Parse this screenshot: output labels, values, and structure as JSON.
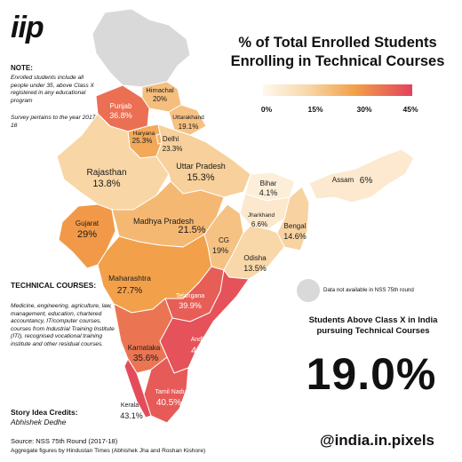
{
  "brand": {
    "logo": "iip",
    "handle": "@india.in.pixels"
  },
  "title": "% of Total Enrolled Students Enrolling in Technical Courses",
  "legend": {
    "ticks": [
      "0%",
      "15%",
      "30%",
      "45%"
    ],
    "min": 0,
    "max": 45
  },
  "note": {
    "heading": "NOTE:",
    "line1": "Enrolled students include all people under 35, above Class X registered in any educational program",
    "line2": "Survey pertains to the year 2017-18"
  },
  "technical_courses": {
    "heading": "TECHNICAL COURSES:",
    "body": "Medicine, engineering, agriculture, law, management, education, chartered accountancy, IT/computer courses, courses from Industrial Training Institute (ITI), recognised vocational training institute and other residual courses."
  },
  "credits": {
    "heading": "Story Idea Credits:",
    "name": "Abhishek Dedhe"
  },
  "source": "Source: NSS 75th Round (2017-18)",
  "aggregate_note": "Aggregate figures by Hindustan Times (Abhishek Jha and Roshan Kishore)",
  "no_data": {
    "label": "Data not available in NSS 75th round",
    "color": "#d9d9d9"
  },
  "headline_stat": {
    "label": "Students Above Class X in India pursuing Technical Courses",
    "value": "19.0%"
  },
  "colors": {
    "low": "#fff8ee",
    "mid1": "#f8d7a8",
    "mid2": "#f29f48",
    "high": "#e2425e",
    "border": "#ffffff"
  },
  "regions": [
    {
      "name": "Himachal",
      "value": 20,
      "label": "20%"
    },
    {
      "name": "Punjab",
      "value": 36.8,
      "label": "36.8%"
    },
    {
      "name": "Uttarakhand",
      "value": 19.1,
      "label": "19.1%"
    },
    {
      "name": "Haryana",
      "value": 25.3,
      "label": "25.3%"
    },
    {
      "name": "Delhi",
      "value": 23.3,
      "label": "23.3%"
    },
    {
      "name": "Rajasthan",
      "value": 13.8,
      "label": "13.8%"
    },
    {
      "name": "Uttar Pradesh",
      "value": 15.3,
      "label": "15.3%"
    },
    {
      "name": "Bihar",
      "value": 4.1,
      "label": "4.1%"
    },
    {
      "name": "Assam",
      "value": 6,
      "label": "6%"
    },
    {
      "name": "Gujarat",
      "value": 29,
      "label": "29%"
    },
    {
      "name": "Madhya Pradesh",
      "value": 21.5,
      "label": "21.5%"
    },
    {
      "name": "Jharkhand",
      "value": 6.6,
      "label": "6.6%"
    },
    {
      "name": "Bengal",
      "value": 14.6,
      "label": "14.6%"
    },
    {
      "name": "CG",
      "value": 19,
      "label": "19%"
    },
    {
      "name": "Odisha",
      "value": 13.5,
      "label": "13.5%"
    },
    {
      "name": "Maharashtra",
      "value": 27.7,
      "label": "27.7%"
    },
    {
      "name": "Telangana",
      "value": 39.9,
      "label": "39.9%"
    },
    {
      "name": "Andhra",
      "value": 42,
      "label": "42%"
    },
    {
      "name": "Karnataka",
      "value": 35.6,
      "label": "35.6%"
    },
    {
      "name": "Tamil Nadu",
      "value": 40.5,
      "label": "40.5%"
    },
    {
      "name": "Kerala",
      "value": 43.1,
      "label": "43.1%"
    }
  ]
}
